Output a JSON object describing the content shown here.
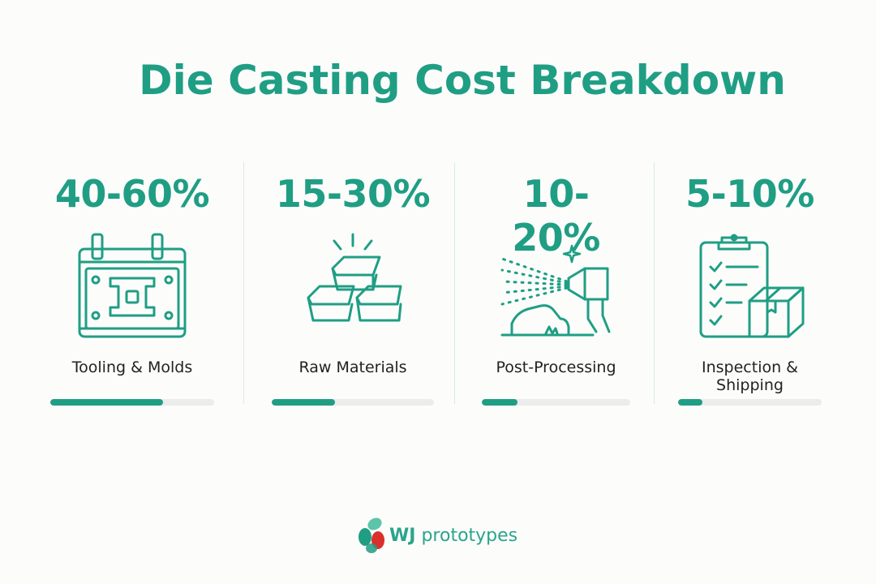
{
  "title": "Die Casting Cost Breakdown",
  "items": [
    {
      "percent": "40-60%",
      "label": "Tooling & Molds",
      "icon": "mold-icon",
      "share": 0.69
    },
    {
      "percent": "15-30%",
      "label": "Raw Materials",
      "icon": "metal-ingots-icon",
      "share": 0.39
    },
    {
      "percent": "10-20%",
      "label": "Post-Processing",
      "icon": "spray-gun-icon",
      "share": 0.24
    },
    {
      "percent": "5-10%",
      "label": "Inspection & Shipping",
      "icon": "checklist-box-icon",
      "share": 0.17
    }
  ],
  "brand": {
    "name_bold": "WJ",
    "name": "prototypes",
    "accent": "#1f9e84",
    "logo_red": "#d9302c"
  }
}
